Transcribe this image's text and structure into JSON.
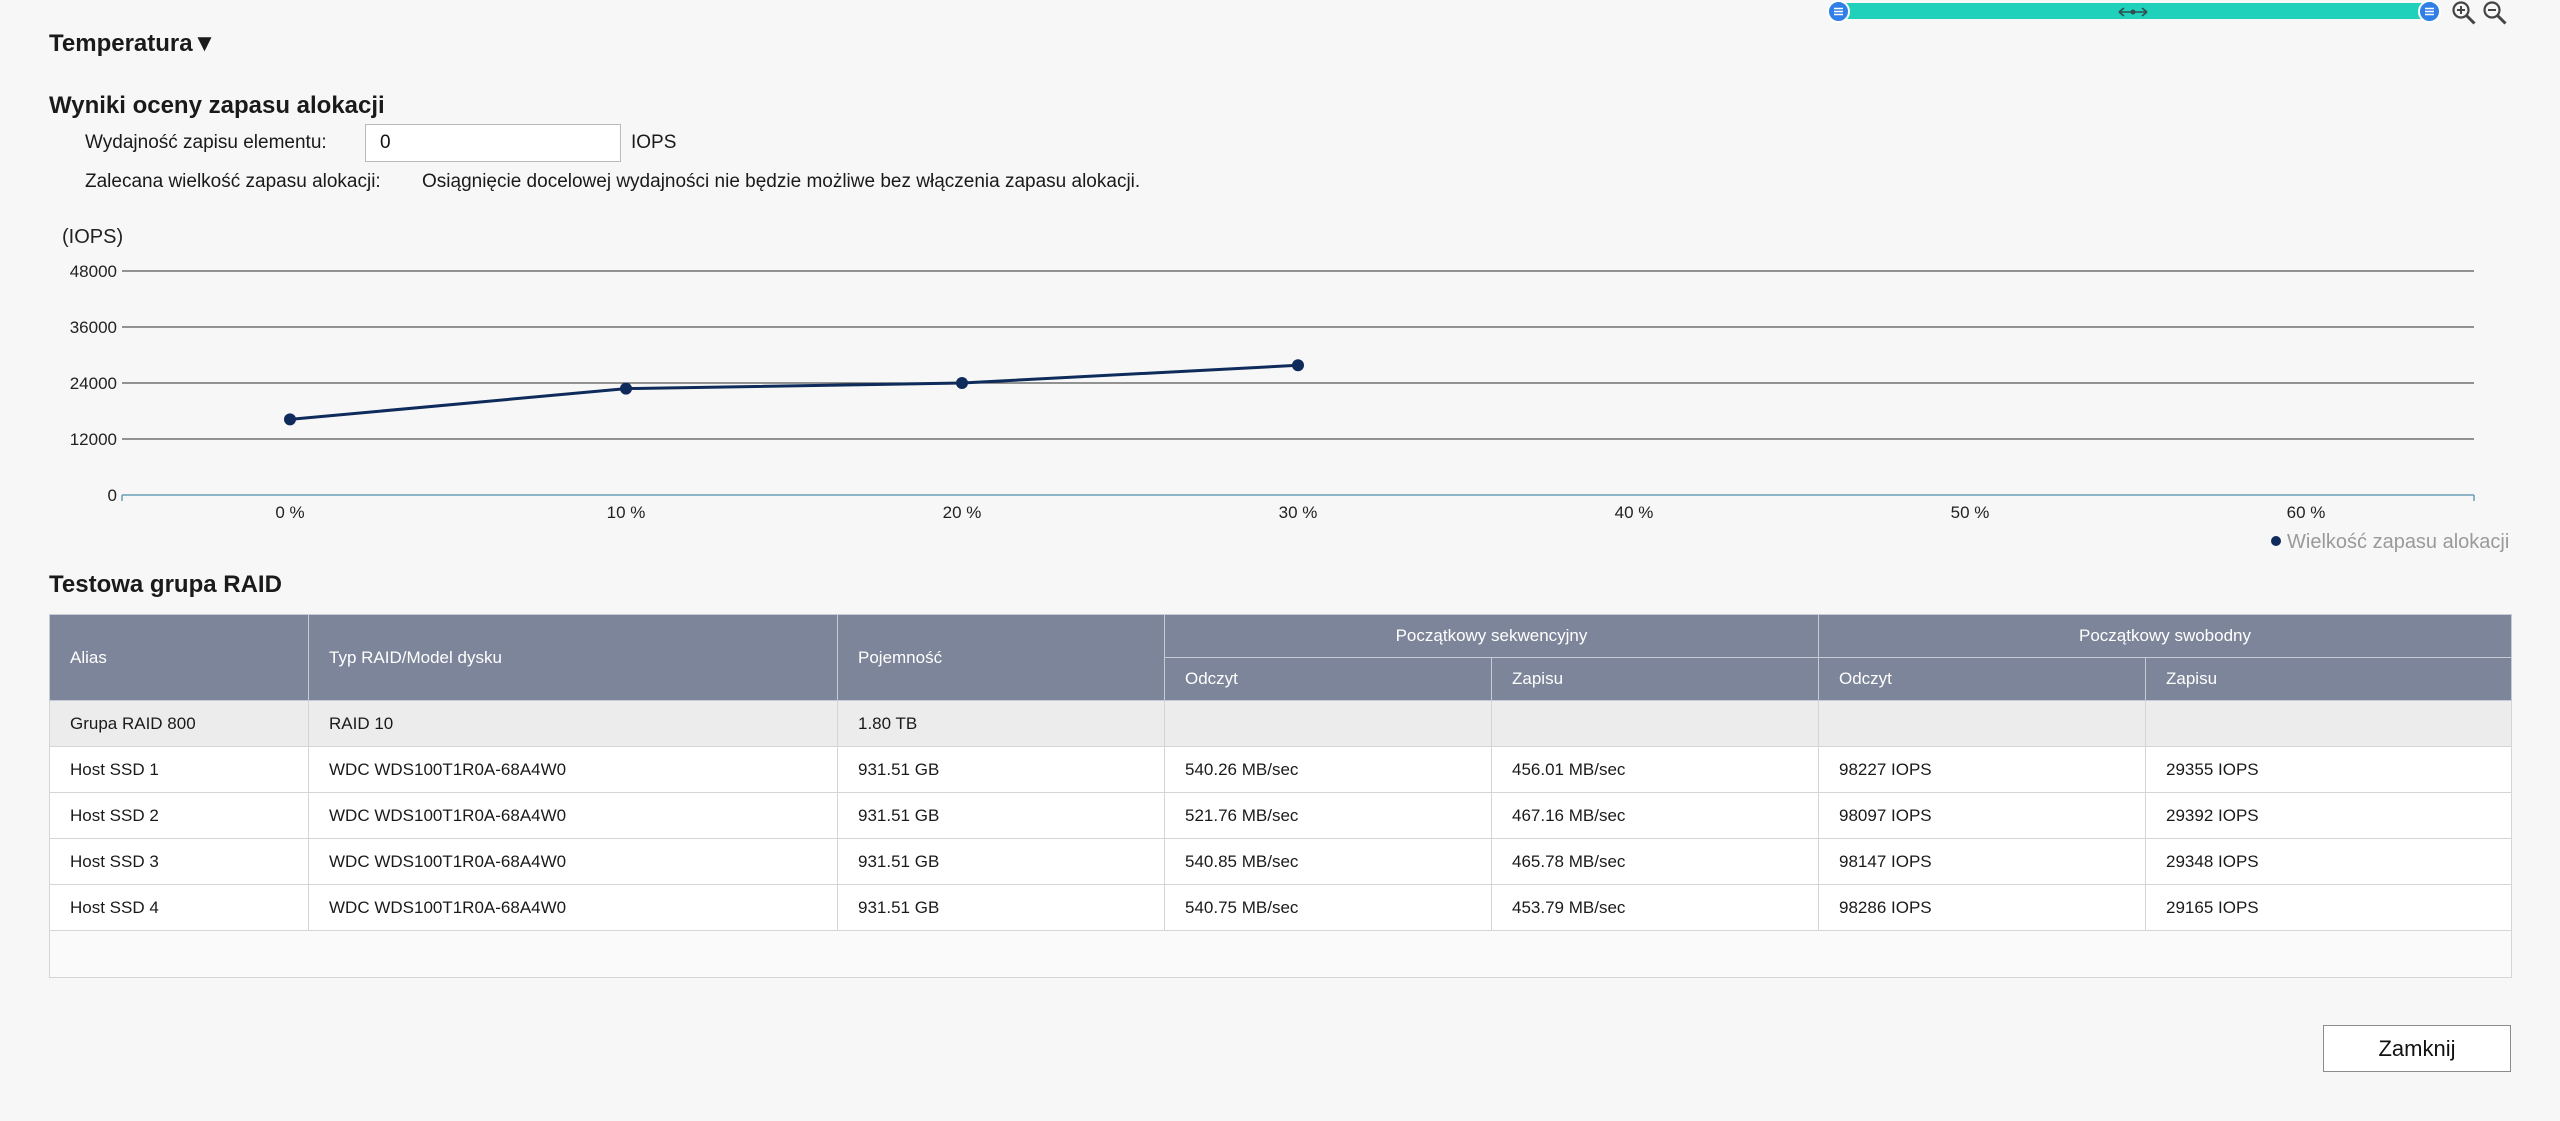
{
  "section_toggle": "Temperatura",
  "toggle_arrow": "▼",
  "results_title": "Wyniki oceny zapasu alokacji",
  "write_perf_label": "Wydajność zapisu elementu:",
  "write_perf_value": "0",
  "write_perf_unit": "IOPS",
  "recommended_label": "Zalecana wielkość zapasu alokacji:",
  "recommended_value": "Osiągnięcie docelowej wydajności nie będzie możliwe bez włączenia zapasu alokacji.",
  "zoom": {
    "range_start": 0,
    "range_end": 1,
    "icons": [
      "zoom-in-icon",
      "zoom-out-icon"
    ]
  },
  "chart_data": {
    "type": "line",
    "ylabel": "(IOPS)",
    "yticks": [
      "48000",
      "36000",
      "24000",
      "12000",
      "0"
    ],
    "ylim": [
      0,
      48000
    ],
    "x_tick_labels": [
      "0 %",
      "10 %",
      "20 %",
      "30 %",
      "40 %",
      "50 %",
      "60 %"
    ],
    "xlim": [
      -5,
      65
    ],
    "series": [
      {
        "name": "Wielkość zapasu alokacji",
        "x": [
          0,
          10,
          20,
          30
        ],
        "values": [
          16200,
          22800,
          24000,
          27800
        ],
        "color": "#0f2b5b"
      }
    ],
    "legend_position": "bottom-right",
    "grid": true
  },
  "raid_title": "Testowa grupa RAID",
  "table": {
    "headers": {
      "alias": "Alias",
      "type": "Typ RAID/Model dysku",
      "capacity": "Pojemność",
      "seq_group": "Początkowy sekwencyjny",
      "rand_group": "Początkowy swobodny",
      "seq_read": "Odczyt",
      "seq_write": "Zapisu",
      "rand_read": "Odczyt",
      "rand_write": "Zapisu"
    },
    "rows": [
      [
        "Grupa RAID 800",
        "RAID 10",
        "1.80 TB",
        "",
        "",
        "",
        ""
      ],
      [
        "Host SSD 1",
        "WDC WDS100T1R0A-68A4W0",
        "931.51 GB",
        "540.26 MB/sec",
        "456.01 MB/sec",
        "98227 IOPS",
        "29355 IOPS"
      ],
      [
        "Host SSD 2",
        "WDC WDS100T1R0A-68A4W0",
        "931.51 GB",
        "521.76 MB/sec",
        "467.16 MB/sec",
        "98097 IOPS",
        "29392 IOPS"
      ],
      [
        "Host SSD 3",
        "WDC WDS100T1R0A-68A4W0",
        "931.51 GB",
        "540.85 MB/sec",
        "465.78 MB/sec",
        "98147 IOPS",
        "29348 IOPS"
      ],
      [
        "Host SSD 4",
        "WDC WDS100T1R0A-68A4W0",
        "931.51 GB",
        "540.75 MB/sec",
        "453.79 MB/sec",
        "98286 IOPS",
        "29165 IOPS"
      ]
    ]
  },
  "close_label": "Zamknij"
}
